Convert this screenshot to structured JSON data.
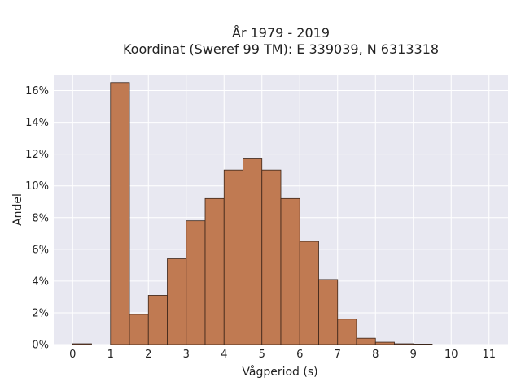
{
  "chart_data": {
    "type": "bar",
    "title_lines": [
      "År 1979 - 2019",
      "Koordinat (Sweref 99 TM): E 339039, N 6313318"
    ],
    "xlabel": "Vågperiod (s)",
    "ylabel": "Andel",
    "xlim": [
      -0.5,
      11.5
    ],
    "ylim": [
      0,
      0.17
    ],
    "xticks": [
      {
        "value": 0,
        "label": "0"
      },
      {
        "value": 1,
        "label": "1"
      },
      {
        "value": 2,
        "label": "2"
      },
      {
        "value": 3,
        "label": "3"
      },
      {
        "value": 4,
        "label": "4"
      },
      {
        "value": 5,
        "label": "5"
      },
      {
        "value": 6,
        "label": "6"
      },
      {
        "value": 7,
        "label": "7"
      },
      {
        "value": 8,
        "label": "8"
      },
      {
        "value": 9,
        "label": "9"
      },
      {
        "value": 10,
        "label": "10"
      },
      {
        "value": 11,
        "label": "11"
      }
    ],
    "yticks": [
      {
        "value": 0,
        "label": "0%"
      },
      {
        "value": 0.02,
        "label": "2%"
      },
      {
        "value": 0.04,
        "label": "4%"
      },
      {
        "value": 0.06,
        "label": "6%"
      },
      {
        "value": 0.08,
        "label": "8%"
      },
      {
        "value": 0.1,
        "label": "10%"
      },
      {
        "value": 0.12,
        "label": "12%"
      },
      {
        "value": 0.14,
        "label": "14%"
      },
      {
        "value": 0.16,
        "label": "16%"
      }
    ],
    "bin_width": 0.5,
    "bins": [
      {
        "start": 0.0,
        "value": 0.0005
      },
      {
        "start": 1.0,
        "value": 0.165
      },
      {
        "start": 1.5,
        "value": 0.019
      },
      {
        "start": 2.0,
        "value": 0.031
      },
      {
        "start": 2.5,
        "value": 0.054
      },
      {
        "start": 3.0,
        "value": 0.078
      },
      {
        "start": 3.5,
        "value": 0.092
      },
      {
        "start": 4.0,
        "value": 0.11
      },
      {
        "start": 4.5,
        "value": 0.117
      },
      {
        "start": 5.0,
        "value": 0.11
      },
      {
        "start": 5.5,
        "value": 0.092
      },
      {
        "start": 6.0,
        "value": 0.065
      },
      {
        "start": 6.5,
        "value": 0.041
      },
      {
        "start": 7.0,
        "value": 0.016
      },
      {
        "start": 7.5,
        "value": 0.004
      },
      {
        "start": 8.0,
        "value": 0.0015
      },
      {
        "start": 8.5,
        "value": 0.0005
      },
      {
        "start": 9.0,
        "value": 0.0003
      }
    ],
    "grid": true,
    "colors": {
      "bar": "#c07a52",
      "bar_edge": "#3a2418",
      "plot_bg": "#e8e8f1",
      "grid": "#ffffff"
    }
  }
}
